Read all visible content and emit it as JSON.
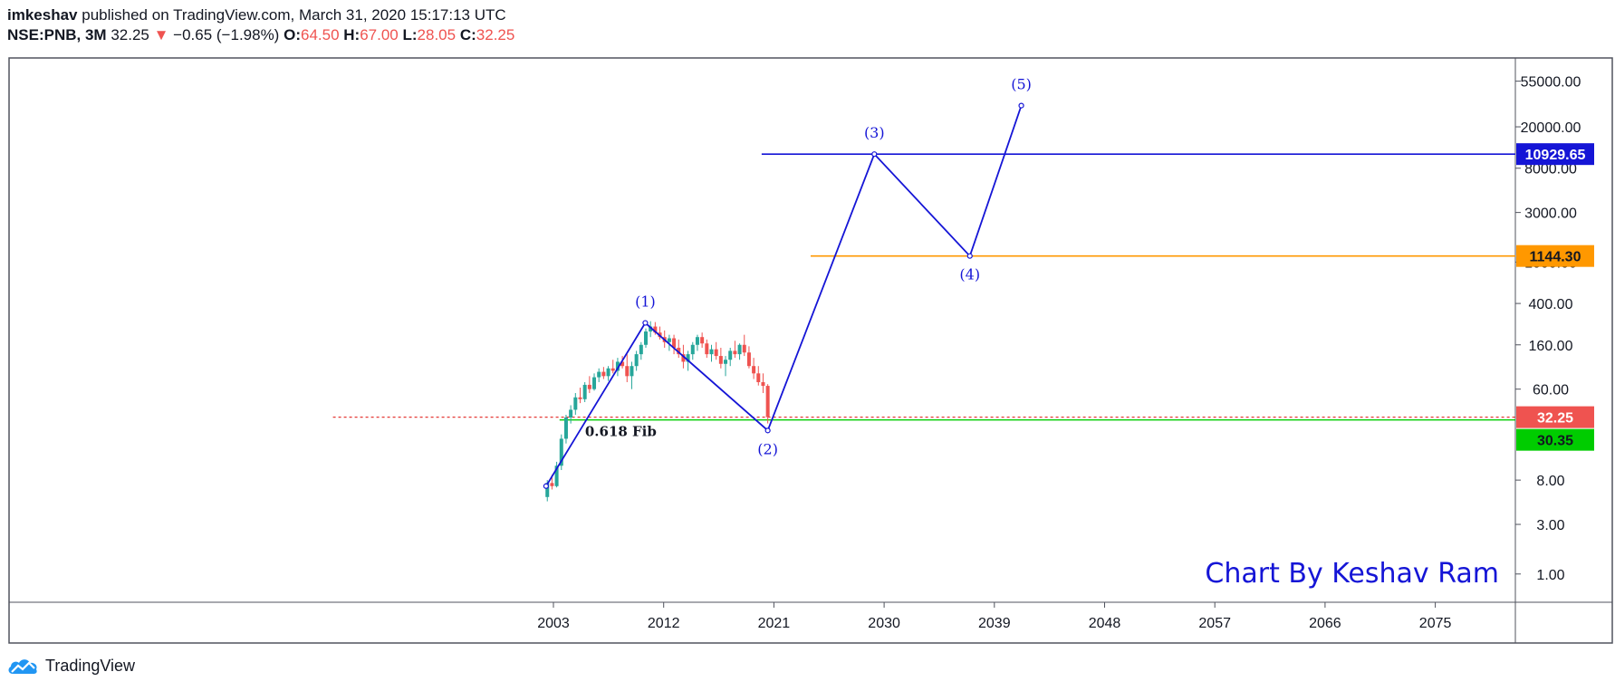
{
  "header": {
    "author": "imkeshav",
    "published_text": "published on TradingView.com, March 31, 2020 15:17:13 UTC",
    "symbol": "NSE:PNB, 3M",
    "last": "32.25",
    "down_arrow": "▼",
    "change": "−0.65 (−1.98%)",
    "o_label": "O:",
    "o_value": "64.50",
    "h_label": "H:",
    "h_value": "67.00",
    "l_label": "L:",
    "l_value": "28.05",
    "c_label": "C:",
    "c_value": "32.25"
  },
  "footer": {
    "brand": "TradingView",
    "logo_icon": "tradingview-cloud-icon"
  },
  "colors": {
    "wave": "#1515d6",
    "orange": "#ff9800",
    "red": "#ef5350",
    "green": "#26a69a",
    "fib_green": "#00cc00",
    "price_red_line": "#e53935",
    "watermark": "#1515d6"
  },
  "chart_data": {
    "type": "line",
    "scale": "log",
    "ylim": [
      0.8,
      60000
    ],
    "xlim": [
      1985,
      2085
    ],
    "y_ticks": [
      "55000.00",
      "20000.00",
      "8000.00",
      "3000.00",
      "1000.00",
      "400.00",
      "160.00",
      "60.00",
      "8.00",
      "3.00",
      "1.00"
    ],
    "x_ticks": [
      "2003",
      "2012",
      "2021",
      "2030",
      "2039",
      "2048",
      "2057",
      "2066",
      "2075"
    ],
    "wave_points": [
      {
        "label": "",
        "x": 2002.4,
        "y": 7
      },
      {
        "label": "(1)",
        "x": 2010.5,
        "y": 260
      },
      {
        "label": "(2)",
        "x": 2020.5,
        "y": 24
      },
      {
        "label": "(3)",
        "x": 2029.2,
        "y": 10929.65
      },
      {
        "label": "(4)",
        "x": 2037.0,
        "y": 1144.3
      },
      {
        "label": "(5)",
        "x": 2041.2,
        "y": 32000
      }
    ],
    "horizontal_lines": [
      {
        "name": "resistance",
        "value": 10929.65,
        "label": "10929.65",
        "from_x": 2020.0
      },
      {
        "name": "support",
        "value": 1144.3,
        "label": "1144.30",
        "from_x": 2024.0
      },
      {
        "name": "fib",
        "value": 30.35,
        "label": "30.35",
        "from_x": 2003.5
      },
      {
        "name": "last-price",
        "value": 32.25,
        "label": "32.25",
        "from_x": 1985
      }
    ],
    "fib_label": "0.618 Fib",
    "watermark": "Chart By Keshav Ram",
    "candles": [
      {
        "o": 5.5,
        "h": 8,
        "l": 5,
        "c": 7.5
      },
      {
        "o": 7.5,
        "h": 9,
        "l": 6.5,
        "c": 7
      },
      {
        "o": 7,
        "h": 12,
        "l": 6.8,
        "c": 11
      },
      {
        "o": 11,
        "h": 22,
        "l": 10,
        "c": 20
      },
      {
        "o": 20,
        "h": 34,
        "l": 18,
        "c": 32
      },
      {
        "o": 32,
        "h": 42,
        "l": 28,
        "c": 38
      },
      {
        "o": 38,
        "h": 55,
        "l": 34,
        "c": 50
      },
      {
        "o": 50,
        "h": 62,
        "l": 44,
        "c": 48
      },
      {
        "o": 48,
        "h": 70,
        "l": 45,
        "c": 66
      },
      {
        "o": 66,
        "h": 80,
        "l": 55,
        "c": 60
      },
      {
        "o": 60,
        "h": 85,
        "l": 58,
        "c": 78
      },
      {
        "o": 78,
        "h": 95,
        "l": 70,
        "c": 88
      },
      {
        "o": 88,
        "h": 98,
        "l": 75,
        "c": 80
      },
      {
        "o": 80,
        "h": 100,
        "l": 72,
        "c": 95
      },
      {
        "o": 95,
        "h": 115,
        "l": 85,
        "c": 90
      },
      {
        "o": 90,
        "h": 120,
        "l": 80,
        "c": 110
      },
      {
        "o": 110,
        "h": 125,
        "l": 95,
        "c": 100
      },
      {
        "o": 100,
        "h": 130,
        "l": 70,
        "c": 80
      },
      {
        "o": 80,
        "h": 110,
        "l": 60,
        "c": 100
      },
      {
        "o": 100,
        "h": 140,
        "l": 90,
        "c": 130
      },
      {
        "o": 130,
        "h": 170,
        "l": 115,
        "c": 160
      },
      {
        "o": 160,
        "h": 230,
        "l": 150,
        "c": 215
      },
      {
        "o": 215,
        "h": 270,
        "l": 190,
        "c": 240
      },
      {
        "o": 240,
        "h": 265,
        "l": 200,
        "c": 210
      },
      {
        "o": 210,
        "h": 240,
        "l": 180,
        "c": 190
      },
      {
        "o": 190,
        "h": 220,
        "l": 150,
        "c": 170
      },
      {
        "o": 170,
        "h": 200,
        "l": 140,
        "c": 185
      },
      {
        "o": 185,
        "h": 200,
        "l": 130,
        "c": 150
      },
      {
        "o": 150,
        "h": 180,
        "l": 120,
        "c": 130
      },
      {
        "o": 130,
        "h": 160,
        "l": 95,
        "c": 110
      },
      {
        "o": 110,
        "h": 140,
        "l": 90,
        "c": 130
      },
      {
        "o": 130,
        "h": 170,
        "l": 115,
        "c": 160
      },
      {
        "o": 160,
        "h": 200,
        "l": 140,
        "c": 190
      },
      {
        "o": 190,
        "h": 210,
        "l": 150,
        "c": 165
      },
      {
        "o": 165,
        "h": 180,
        "l": 120,
        "c": 130
      },
      {
        "o": 130,
        "h": 160,
        "l": 110,
        "c": 145
      },
      {
        "o": 145,
        "h": 170,
        "l": 115,
        "c": 125
      },
      {
        "o": 125,
        "h": 150,
        "l": 95,
        "c": 105
      },
      {
        "o": 105,
        "h": 125,
        "l": 80,
        "c": 115
      },
      {
        "o": 115,
        "h": 150,
        "l": 100,
        "c": 140
      },
      {
        "o": 140,
        "h": 175,
        "l": 120,
        "c": 130
      },
      {
        "o": 130,
        "h": 165,
        "l": 115,
        "c": 160
      },
      {
        "o": 160,
        "h": 200,
        "l": 125,
        "c": 135
      },
      {
        "o": 135,
        "h": 155,
        "l": 95,
        "c": 100
      },
      {
        "o": 100,
        "h": 120,
        "l": 75,
        "c": 85
      },
      {
        "o": 85,
        "h": 100,
        "l": 65,
        "c": 70
      },
      {
        "o": 70,
        "h": 85,
        "l": 55,
        "c": 64.5
      },
      {
        "o": 64.5,
        "h": 67,
        "l": 28.05,
        "c": 32.25
      }
    ]
  }
}
